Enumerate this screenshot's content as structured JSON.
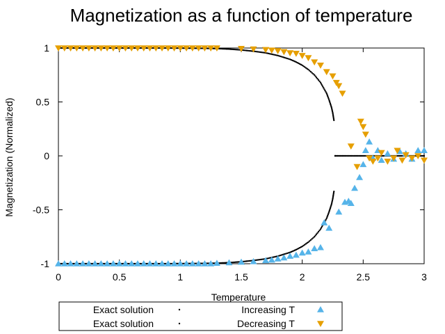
{
  "chart_data": {
    "type": "scatter",
    "title": "Magnetization as a function of temperature",
    "xlabel": "Temperature",
    "ylabel": "Magnetization (Normalized)",
    "xlim": [
      0,
      3
    ],
    "ylim": [
      -1,
      1
    ],
    "x_ticks": [
      "0",
      "0.5",
      "1",
      "1.5",
      "2",
      "2.5",
      "3"
    ],
    "y_ticks": [
      "1",
      "0.5",
      "0",
      "-0.5",
      "-1"
    ],
    "grid": false,
    "legend_position": "bottom",
    "series": [
      {
        "name": "Exact solution",
        "marker": "dot",
        "color": "#000000",
        "points": [
          [
            0,
            1
          ],
          [
            0.2,
            1
          ],
          [
            0.4,
            1
          ],
          [
            0.6,
            1
          ],
          [
            0.8,
            1
          ],
          [
            1.0,
            0.999
          ],
          [
            1.1,
            0.998
          ],
          [
            1.2,
            0.997
          ],
          [
            1.3,
            0.995
          ],
          [
            1.4,
            0.99
          ],
          [
            1.5,
            0.982
          ],
          [
            1.6,
            0.97
          ],
          [
            1.7,
            0.955
          ],
          [
            1.8,
            0.93
          ],
          [
            1.9,
            0.895
          ],
          [
            1.95,
            0.87
          ],
          [
            2.0,
            0.84
          ],
          [
            2.05,
            0.8
          ],
          [
            2.1,
            0.75
          ],
          [
            2.15,
            0.68
          ],
          [
            2.2,
            0.58
          ],
          [
            2.22,
            0.52
          ],
          [
            2.24,
            0.45
          ],
          [
            2.25,
            0.4
          ],
          [
            2.26,
            0.33
          ],
          [
            2.27,
            0
          ],
          [
            2.35,
            0
          ],
          [
            2.5,
            0
          ],
          [
            2.7,
            0
          ],
          [
            2.9,
            0
          ],
          [
            3.0,
            0
          ]
        ]
      },
      {
        "name": "Exact solution",
        "marker": "dot",
        "color": "#000000",
        "points": [
          [
            0,
            -1
          ],
          [
            0.2,
            -1
          ],
          [
            0.4,
            -1
          ],
          [
            0.6,
            -1
          ],
          [
            0.8,
            -1
          ],
          [
            1.0,
            -0.999
          ],
          [
            1.1,
            -0.998
          ],
          [
            1.2,
            -0.997
          ],
          [
            1.3,
            -0.995
          ],
          [
            1.4,
            -0.99
          ],
          [
            1.5,
            -0.982
          ],
          [
            1.6,
            -0.97
          ],
          [
            1.7,
            -0.955
          ],
          [
            1.8,
            -0.93
          ],
          [
            1.9,
            -0.895
          ],
          [
            1.95,
            -0.87
          ],
          [
            2.0,
            -0.84
          ],
          [
            2.05,
            -0.8
          ],
          [
            2.1,
            -0.75
          ],
          [
            2.15,
            -0.68
          ],
          [
            2.2,
            -0.58
          ],
          [
            2.22,
            -0.52
          ],
          [
            2.24,
            -0.45
          ],
          [
            2.25,
            -0.4
          ],
          [
            2.26,
            -0.33
          ],
          [
            2.27,
            0
          ]
        ]
      },
      {
        "name": "Increasing T",
        "marker": "triangle-up",
        "color": "#56b4e9",
        "points": [
          [
            0,
            -1
          ],
          [
            0.05,
            -1
          ],
          [
            0.1,
            -1
          ],
          [
            0.15,
            -1
          ],
          [
            0.2,
            -1
          ],
          [
            0.25,
            -1
          ],
          [
            0.3,
            -1
          ],
          [
            0.35,
            -1
          ],
          [
            0.4,
            -1
          ],
          [
            0.45,
            -1
          ],
          [
            0.5,
            -1
          ],
          [
            0.55,
            -1
          ],
          [
            0.6,
            -1
          ],
          [
            0.65,
            -1
          ],
          [
            0.7,
            -1
          ],
          [
            0.75,
            -1
          ],
          [
            0.8,
            -1
          ],
          [
            0.85,
            -1
          ],
          [
            0.9,
            -1
          ],
          [
            0.95,
            -1
          ],
          [
            1.0,
            -1
          ],
          [
            1.05,
            -1
          ],
          [
            1.1,
            -1
          ],
          [
            1.15,
            -1
          ],
          [
            1.2,
            -1
          ],
          [
            1.25,
            -1
          ],
          [
            1.3,
            -0.995
          ],
          [
            1.4,
            -0.99
          ],
          [
            1.5,
            -0.985
          ],
          [
            1.6,
            -0.98
          ],
          [
            1.7,
            -0.97
          ],
          [
            1.75,
            -0.965
          ],
          [
            1.8,
            -0.955
          ],
          [
            1.85,
            -0.945
          ],
          [
            1.9,
            -0.93
          ],
          [
            1.95,
            -0.92
          ],
          [
            2.0,
            -0.9
          ],
          [
            2.05,
            -0.89
          ],
          [
            2.1,
            -0.86
          ],
          [
            2.15,
            -0.85
          ],
          [
            2.18,
            -0.62
          ],
          [
            2.22,
            -0.67
          ],
          [
            2.3,
            -0.52
          ],
          [
            2.35,
            -0.43
          ],
          [
            2.38,
            -0.42
          ],
          [
            2.4,
            -0.44
          ],
          [
            2.43,
            -0.3
          ],
          [
            2.47,
            -0.2
          ],
          [
            2.5,
            -0.08
          ],
          [
            2.52,
            0.05
          ],
          [
            2.55,
            0.13
          ],
          [
            2.58,
            -0.02
          ],
          [
            2.62,
            0.05
          ],
          [
            2.65,
            -0.04
          ],
          [
            2.7,
            0.02
          ],
          [
            2.75,
            -0.03
          ],
          [
            2.8,
            0.04
          ],
          [
            2.85,
            0.02
          ],
          [
            2.9,
            -0.03
          ],
          [
            2.95,
            0.05
          ],
          [
            3.0,
            0.05
          ]
        ]
      },
      {
        "name": "Decreasing T",
        "marker": "triangle-down",
        "color": "#e69f00",
        "points": [
          [
            0,
            1
          ],
          [
            0.05,
            1
          ],
          [
            0.1,
            1
          ],
          [
            0.15,
            1
          ],
          [
            0.2,
            1
          ],
          [
            0.25,
            1
          ],
          [
            0.3,
            1
          ],
          [
            0.35,
            1
          ],
          [
            0.4,
            1
          ],
          [
            0.45,
            1
          ],
          [
            0.5,
            1
          ],
          [
            0.55,
            1
          ],
          [
            0.6,
            1
          ],
          [
            0.65,
            1
          ],
          [
            0.7,
            1
          ],
          [
            0.75,
            1
          ],
          [
            0.8,
            1
          ],
          [
            0.85,
            1
          ],
          [
            0.9,
            1
          ],
          [
            0.95,
            1
          ],
          [
            1.0,
            1
          ],
          [
            1.05,
            1
          ],
          [
            1.1,
            1
          ],
          [
            1.15,
            1
          ],
          [
            1.2,
            1
          ],
          [
            1.25,
            1
          ],
          [
            1.3,
            1
          ],
          [
            1.5,
            0.995
          ],
          [
            1.6,
            0.99
          ],
          [
            1.7,
            0.985
          ],
          [
            1.75,
            0.98
          ],
          [
            1.8,
            0.975
          ],
          [
            1.85,
            0.965
          ],
          [
            1.9,
            0.955
          ],
          [
            1.95,
            0.95
          ],
          [
            2.0,
            0.93
          ],
          [
            2.05,
            0.91
          ],
          [
            2.1,
            0.87
          ],
          [
            2.15,
            0.84
          ],
          [
            2.2,
            0.78
          ],
          [
            2.25,
            0.74
          ],
          [
            2.28,
            0.68
          ],
          [
            2.3,
            0.65
          ],
          [
            2.33,
            0.58
          ],
          [
            2.48,
            0.32
          ],
          [
            2.5,
            0.27
          ],
          [
            2.52,
            0.2
          ],
          [
            2.4,
            0.09
          ],
          [
            2.45,
            -0.1
          ],
          [
            2.55,
            -0.02
          ],
          [
            2.58,
            -0.05
          ],
          [
            2.62,
            -0.02
          ],
          [
            2.65,
            0.03
          ],
          [
            2.7,
            -0.05
          ],
          [
            2.75,
            -0.02
          ],
          [
            2.78,
            0.05
          ],
          [
            2.82,
            -0.04
          ],
          [
            2.85,
            0.01
          ],
          [
            2.9,
            -0.02
          ],
          [
            2.95,
            0
          ],
          [
            3.0,
            -0.04
          ]
        ]
      }
    ]
  }
}
